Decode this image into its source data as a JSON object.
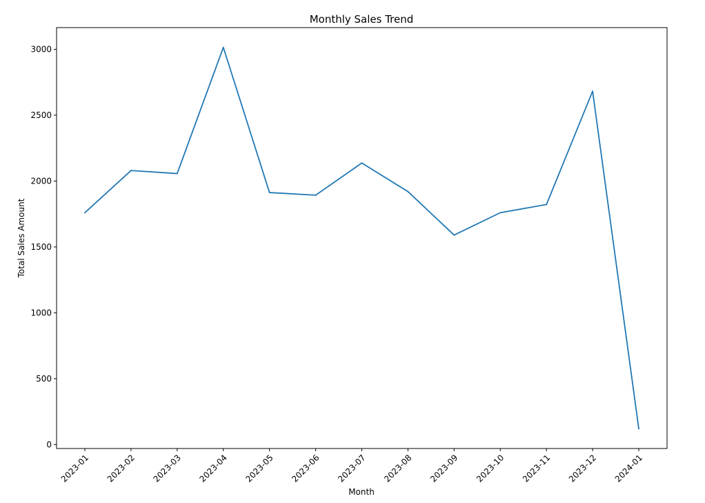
{
  "chart_data": {
    "type": "line",
    "title": "Monthly Sales Trend",
    "xlabel": "Month",
    "ylabel": "Total Sales Amount",
    "categories": [
      "2023-01",
      "2023-02",
      "2023-03",
      "2023-04",
      "2023-05",
      "2023-06",
      "2023-07",
      "2023-08",
      "2023-09",
      "2023-10",
      "2023-11",
      "2023-12",
      "2024-01"
    ],
    "series": [
      {
        "values": [
          1760,
          2080,
          2057,
          3015,
          1913,
          1893,
          2137,
          1920,
          1590,
          1760,
          1822,
          2682,
          120
        ]
      }
    ],
    "yticks": [
      "0",
      "500",
      "1000",
      "1500",
      "2000",
      "2500",
      "3000"
    ],
    "ylim": [
      -30,
      3165
    ],
    "grid": false,
    "colors": {
      "line": "#1f77b4",
      "axes": "#000000"
    }
  }
}
